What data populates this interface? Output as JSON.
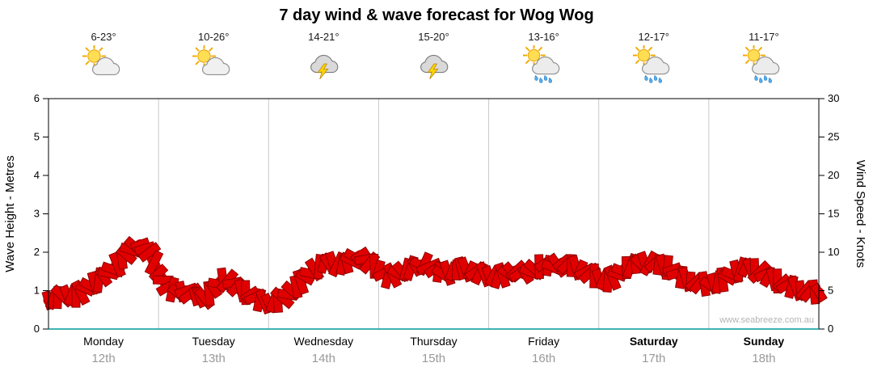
{
  "title": "7 day wind & wave forecast for Wog Wog",
  "watermark": "www.seabreeze.com.au",
  "days": [
    {
      "name": "Monday",
      "date": "12th",
      "temp": "6-23°",
      "icon": "sun-cloud",
      "weekend": false
    },
    {
      "name": "Tuesday",
      "date": "13th",
      "temp": "10-26°",
      "icon": "sun-cloud",
      "weekend": false
    },
    {
      "name": "Wednesday",
      "date": "14th",
      "temp": "14-21°",
      "icon": "storm",
      "weekend": false
    },
    {
      "name": "Thursday",
      "date": "15th",
      "temp": "15-20°",
      "icon": "storm",
      "weekend": false
    },
    {
      "name": "Friday",
      "date": "16th",
      "temp": "13-16°",
      "icon": "sun-showers",
      "weekend": false
    },
    {
      "name": "Saturday",
      "date": "17th",
      "temp": "12-17°",
      "icon": "sun-showers",
      "weekend": true
    },
    {
      "name": "Sunday",
      "date": "18th",
      "temp": "11-17°",
      "icon": "sun-showers",
      "weekend": true
    }
  ],
  "chart_data": {
    "type": "area",
    "title": "7 day wind & wave forecast for Wog Wog",
    "ylabel_left": "Wave Height - Metres",
    "ylabel_right": "Wind Speed - Knots",
    "ylim_left": [
      0,
      6
    ],
    "ylim_right": [
      0,
      30
    ],
    "yticks_left": [
      0,
      1,
      2,
      3,
      4,
      5,
      6
    ],
    "yticks_right": [
      0,
      5,
      10,
      15,
      20,
      25,
      30
    ],
    "categories": [
      "Monday 12th",
      "Tuesday 13th",
      "Wednesday 14th",
      "Thursday 15th",
      "Friday 16th",
      "Saturday 17th",
      "Sunday 18th"
    ],
    "samples_per_day": 12,
    "wind_scale_note": "Wind Speed (knots) = Wave Height (m) × 5 on shared band",
    "series": [
      {
        "name": "Wave Height (m)",
        "values": [
          0.75,
          0.82,
          0.9,
          0.85,
          1.05,
          1.2,
          1.35,
          1.55,
          1.8,
          2.05,
          2.2,
          2.0,
          1.45,
          1.1,
          0.95,
          1.0,
          0.85,
          0.8,
          1.05,
          1.3,
          1.2,
          1.0,
          0.9,
          0.75,
          0.68,
          0.72,
          0.9,
          1.1,
          1.35,
          1.55,
          1.7,
          1.72,
          1.65,
          1.78,
          1.92,
          1.72,
          1.55,
          1.35,
          1.45,
          1.55,
          1.62,
          1.7,
          1.55,
          1.42,
          1.5,
          1.58,
          1.52,
          1.45,
          1.4,
          1.35,
          1.45,
          1.52,
          1.42,
          1.55,
          1.7,
          1.6,
          1.72,
          1.65,
          1.55,
          1.45,
          1.32,
          1.25,
          1.42,
          1.6,
          1.68,
          1.72,
          1.7,
          1.65,
          1.55,
          1.35,
          1.25,
          1.2,
          1.15,
          1.22,
          1.35,
          1.5,
          1.6,
          1.55,
          1.42,
          1.3,
          1.2,
          1.1,
          1.02,
          0.98,
          0.95
        ]
      }
    ],
    "legend": "none",
    "grid": "vertical-day-boundaries"
  },
  "colors": {
    "band": "#e10000",
    "band_outline": "#8f0000",
    "grid": "#c8c8c8",
    "axis": "#000000",
    "baseline": "#009a9a",
    "date_text": "#999999",
    "watermark": "#b5b5b5"
  }
}
